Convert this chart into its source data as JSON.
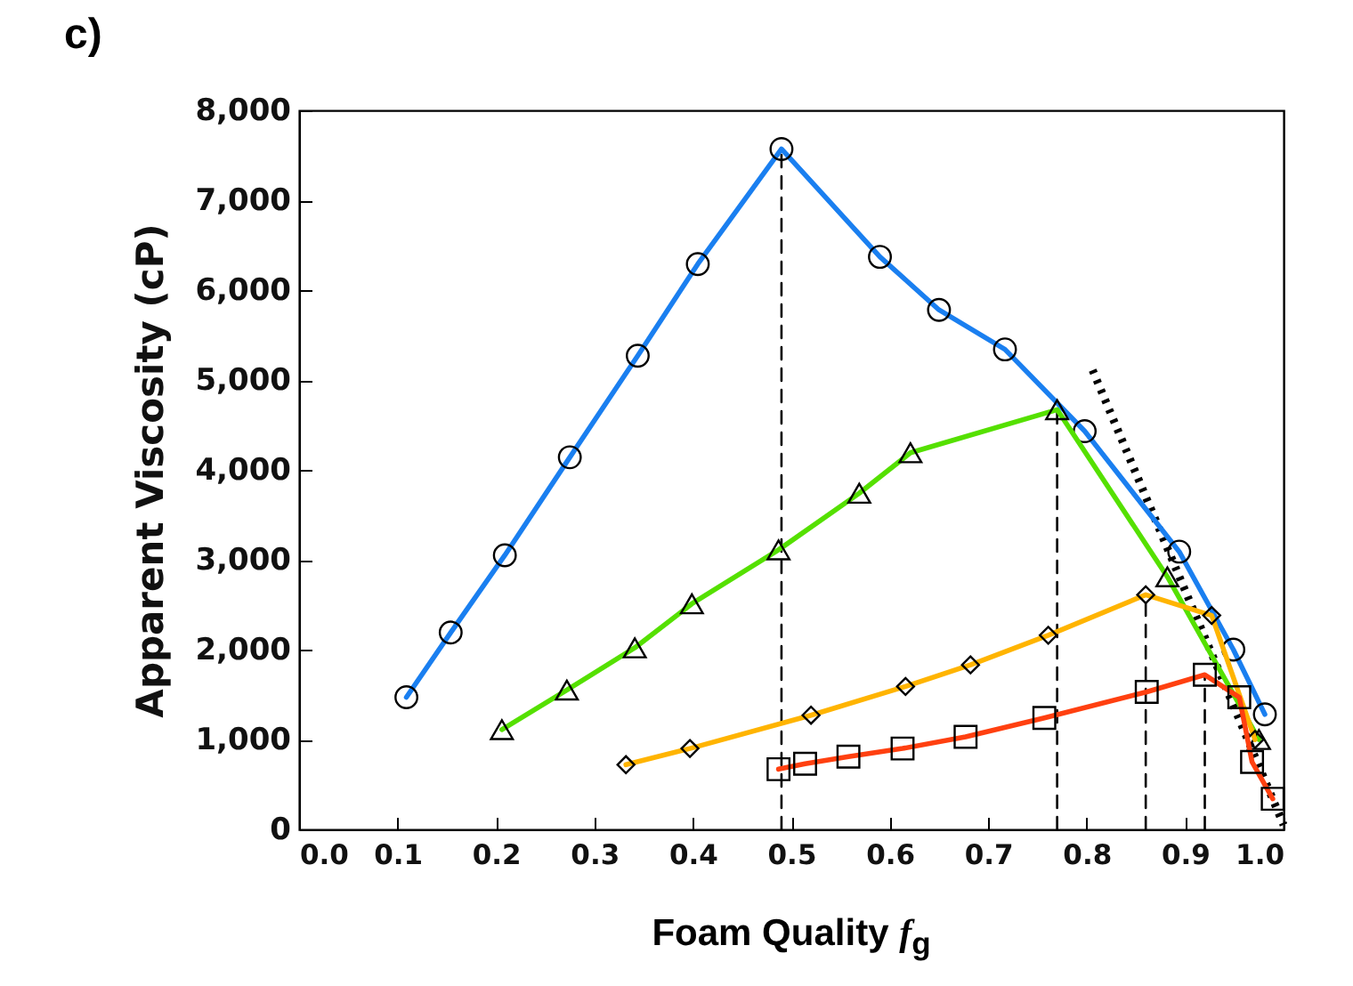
{
  "chart_data": {
    "type": "line",
    "title": "c)",
    "xlabel": "Foam Quality f$_{g}$",
    "ylabel": "Apparent Viscosity (cP)",
    "xlim": [
      0,
      1
    ],
    "xticks": [
      {
        "value": 0,
        "label": "0.0"
      },
      0.1,
      0.2,
      0.3,
      0.4,
      0.5,
      0.6,
      0.7,
      0.8,
      0.9,
      {
        "value": 1,
        "label": "1.0"
      }
    ],
    "ylim": [
      0,
      8000
    ],
    "yticks": [
      0,
      {
        "value": 1000,
        "label": "1,000"
      },
      {
        "value": 2000,
        "label": "2,000"
      },
      {
        "value": 3000,
        "label": "3,000"
      },
      {
        "value": 4000,
        "label": "4,000"
      },
      {
        "value": 5000,
        "label": "5,000"
      },
      {
        "value": 6000,
        "label": "6,000"
      },
      {
        "value": 7000,
        "label": "7,000"
      },
      {
        "value": 8000,
        "label": "8,000"
      }
    ],
    "grid": false,
    "line_style": "solid",
    "series": [
      {
        "color": "#000000",
        "line_style": "dashed",
        "x": [
          0.49,
          0.49
        ],
        "values": [
          0,
          7570
        ]
      },
      {
        "color": "#000000",
        "line_style": "dashed",
        "x": [
          0.77,
          0.77
        ],
        "values": [
          0,
          4670
        ]
      },
      {
        "color": "#000000",
        "line_style": "dashed",
        "x": [
          0.86,
          0.86
        ],
        "values": [
          0,
          2610
        ]
      },
      {
        "color": "#000000",
        "line_style": "dashed",
        "x": [
          0.92,
          0.92
        ],
        "values": [
          0,
          1720
        ]
      },
      {
        "color": "#000000",
        "line_style": "dotted",
        "x": [
          0.806,
          1.0
        ],
        "values": [
          5110,
          50
        ]
      },
      {
        "color": "#1a7ff0",
        "marker": "circle",
        "x": [
          0.109,
          0.154,
          0.209,
          0.275,
          0.344,
          0.405,
          0.49,
          0.59,
          0.65,
          0.717,
          0.798,
          0.894,
          0.949,
          0.981
        ],
        "values": [
          1470,
          2190,
          3050,
          4140,
          5270,
          6290,
          7570,
          6370,
          5780,
          5340,
          4430,
          3090,
          2000,
          1280
        ]
      },
      {
        "color": "#55e000",
        "marker": "triangle",
        "x": [
          0.206,
          0.272,
          0.341,
          0.399,
          0.487,
          0.569,
          0.621,
          0.77,
          0.882,
          0.975
        ],
        "values": [
          1110,
          1550,
          2020,
          2510,
          3110,
          3740,
          4190,
          4670,
          2810,
          1000
        ]
      },
      {
        "color": "#ffb400",
        "marker": "diamond",
        "x": [
          0.332,
          0.397,
          0.52,
          0.616,
          0.682,
          0.761,
          0.86,
          0.927,
          0.971
        ],
        "values": [
          720,
          900,
          1270,
          1590,
          1830,
          2160,
          2610,
          2380,
          1000
        ]
      },
      {
        "color": "#ff4010",
        "marker": "square",
        "x": [
          0.487,
          0.514,
          0.558,
          0.613,
          0.677,
          0.757,
          0.861,
          0.92,
          0.955,
          0.968,
          0.989
        ],
        "values": [
          670,
          730,
          810,
          900,
          1030,
          1240,
          1530,
          1720,
          1470,
          750,
          340
        ]
      }
    ]
  }
}
